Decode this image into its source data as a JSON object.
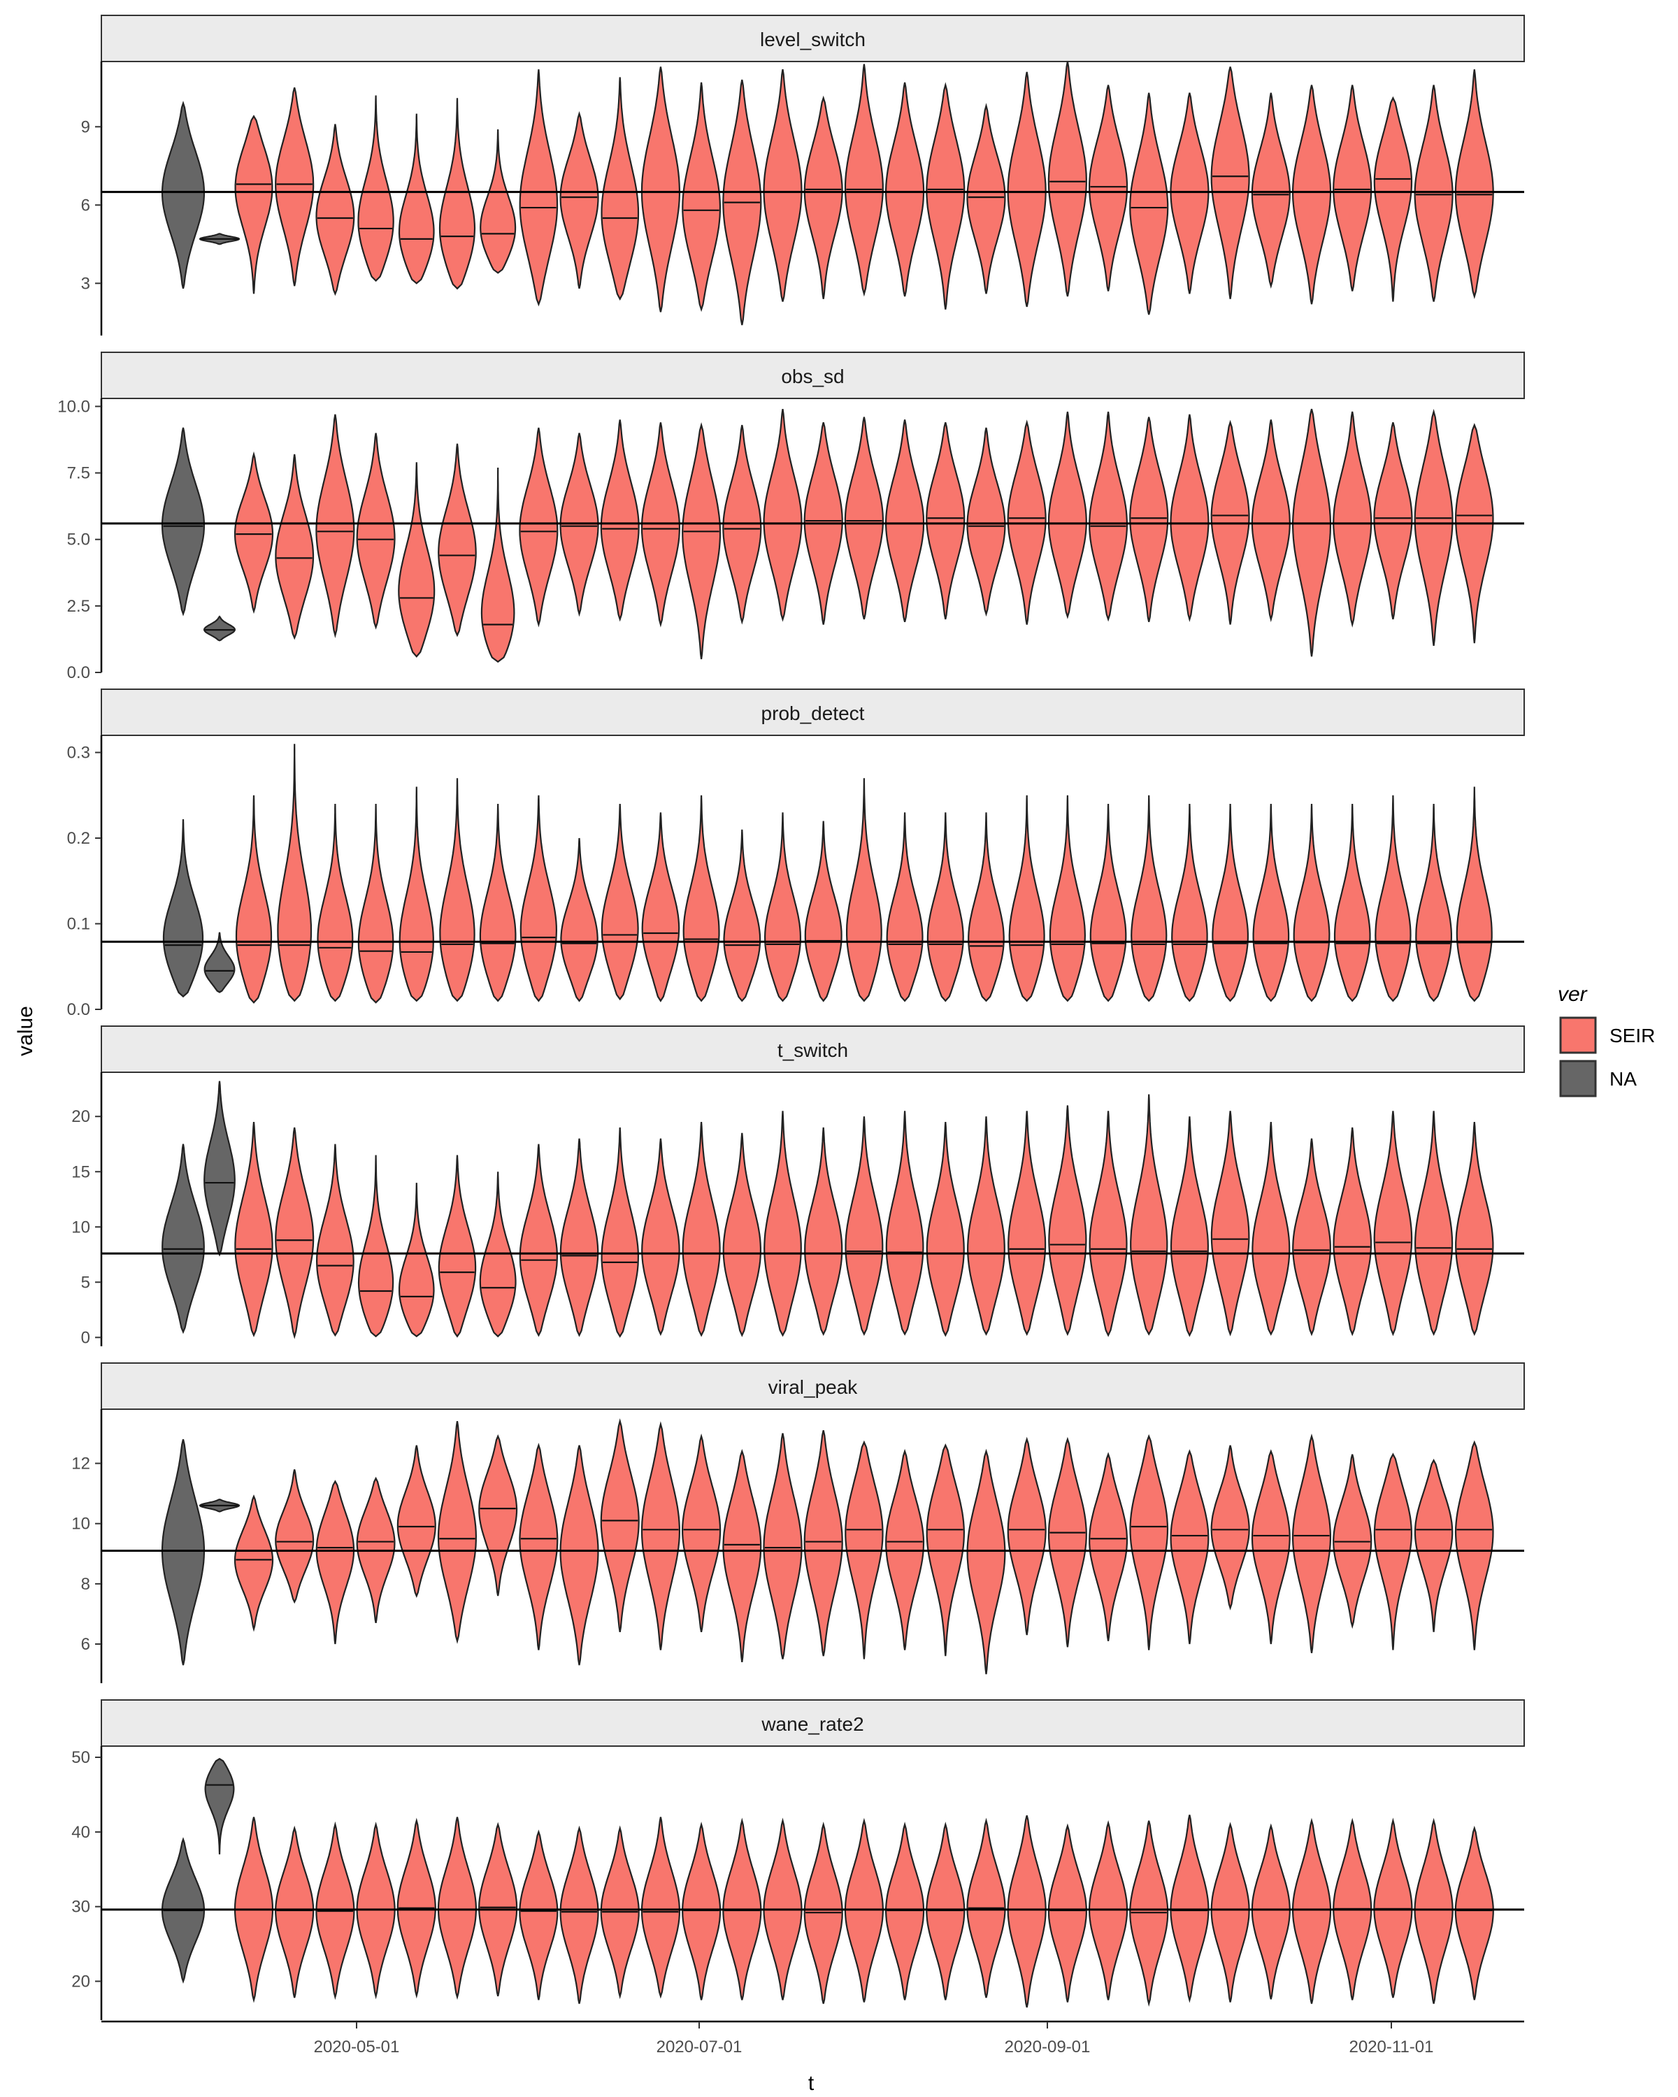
{
  "chart_data": {
    "type": "violin",
    "xlabel": "t",
    "ylabel": "value",
    "x_tick_labels": [
      "2020-05-01",
      "2020-07-01",
      "2020-09-01",
      "2020-11-01"
    ],
    "legend": {
      "title": "ver",
      "placement": "right",
      "entries": [
        {
          "label": "SEIR",
          "color": "#f8766d"
        },
        {
          "label": "NA",
          "color": "#666666"
        }
      ]
    },
    "facets": [
      {
        "name": "level_switch",
        "ylim": [
          1.0,
          11.5
        ],
        "yticks": [
          3,
          6,
          9
        ],
        "hline": 6.5,
        "prior": {
          "median": 6.5,
          "min": 2.8,
          "max": 9.9
        },
        "extra": {
          "median": 4.7,
          "min": 4.5,
          "max": 4.9
        },
        "medians": [
          6.8,
          6.8,
          5.5,
          5.1,
          4.7,
          4.8,
          4.9,
          5.9,
          6.3,
          5.5,
          6.5,
          5.8,
          6.1,
          6.5,
          6.6,
          6.6,
          6.5,
          6.6,
          6.3,
          6.5,
          6.9,
          6.7,
          5.9,
          6.5,
          7.1,
          6.4,
          6.5,
          6.6,
          7.0,
          6.4,
          6.4
        ],
        "mins": [
          2.6,
          2.9,
          2.6,
          3.1,
          3.0,
          2.8,
          3.4,
          2.2,
          2.8,
          2.4,
          1.9,
          2.0,
          1.4,
          2.3,
          2.4,
          2.6,
          2.5,
          2.0,
          2.6,
          2.1,
          2.5,
          2.7,
          1.8,
          2.6,
          2.4,
          2.9,
          2.2,
          2.7,
          2.3,
          2.3,
          2.5
        ],
        "maxs": [
          9.4,
          10.5,
          9.1,
          10.2,
          9.5,
          10.1,
          8.9,
          11.2,
          9.5,
          10.9,
          11.3,
          10.7,
          10.8,
          11.2,
          10.1,
          11.4,
          10.7,
          10.6,
          9.8,
          11.1,
          11.5,
          10.6,
          10.3,
          10.3,
          11.3,
          10.3,
          10.6,
          10.6,
          10.1,
          10.6,
          11.2
        ]
      },
      {
        "name": "obs_sd",
        "ylim": [
          0,
          10.3
        ],
        "yticks": [
          0.0,
          2.5,
          5.0,
          7.5,
          10.0
        ],
        "ytick_labels": [
          "0.0",
          "2.5",
          "5.0",
          "7.5",
          "10.0"
        ],
        "hline": 5.6,
        "prior": {
          "median": 5.5,
          "min": 2.2,
          "max": 9.2
        },
        "extra": {
          "median": 1.6,
          "min": 1.2,
          "max": 2.1
        },
        "medians": [
          5.2,
          4.3,
          5.3,
          5.0,
          2.8,
          4.4,
          1.8,
          5.3,
          5.5,
          5.4,
          5.4,
          5.3,
          5.4,
          5.6,
          5.7,
          5.7,
          5.6,
          5.8,
          5.5,
          5.8,
          5.6,
          5.5,
          5.8,
          5.6,
          5.9,
          5.6,
          5.6,
          5.6,
          5.8,
          5.8,
          5.9
        ],
        "mins": [
          2.3,
          1.3,
          1.4,
          1.7,
          0.6,
          1.4,
          0.4,
          1.8,
          2.2,
          2.0,
          1.8,
          0.5,
          1.9,
          2.0,
          1.8,
          2.0,
          1.9,
          2.0,
          2.2,
          1.8,
          2.1,
          2.0,
          1.9,
          2.0,
          1.8,
          2.0,
          0.6,
          1.8,
          2.0,
          1.0,
          1.1
        ],
        "maxs": [
          8.2,
          8.2,
          9.7,
          9.0,
          7.9,
          8.6,
          7.7,
          9.2,
          9.0,
          9.5,
          9.4,
          9.3,
          9.3,
          9.9,
          9.4,
          9.6,
          9.5,
          9.4,
          9.2,
          9.4,
          9.8,
          9.8,
          9.6,
          9.7,
          9.4,
          9.5,
          9.9,
          9.8,
          9.4,
          9.8,
          9.3
        ]
      },
      {
        "name": "prob_detect",
        "ylim": [
          0,
          0.32
        ],
        "yticks": [
          0.0,
          0.1,
          0.2,
          0.3
        ],
        "ytick_labels": [
          "0.0",
          "0.1",
          "0.2",
          "0.3"
        ],
        "hline": 0.079,
        "prior": {
          "median": 0.075,
          "min": 0.015,
          "max": 0.222
        },
        "extra": {
          "median": 0.045,
          "min": 0.02,
          "max": 0.09
        },
        "medians": [
          0.075,
          0.075,
          0.072,
          0.068,
          0.067,
          0.076,
          0.077,
          0.084,
          0.077,
          0.087,
          0.089,
          0.082,
          0.075,
          0.076,
          0.08,
          0.079,
          0.076,
          0.076,
          0.074,
          0.075,
          0.076,
          0.077,
          0.076,
          0.076,
          0.077,
          0.077,
          0.078,
          0.077,
          0.077,
          0.077,
          0.078
        ],
        "mins": [
          0.008,
          0.01,
          0.01,
          0.008,
          0.01,
          0.01,
          0.01,
          0.01,
          0.01,
          0.012,
          0.01,
          0.01,
          0.01,
          0.01,
          0.01,
          0.01,
          0.01,
          0.01,
          0.01,
          0.01,
          0.01,
          0.01,
          0.01,
          0.01,
          0.01,
          0.01,
          0.01,
          0.01,
          0.01,
          0.01,
          0.01
        ],
        "maxs": [
          0.25,
          0.31,
          0.24,
          0.24,
          0.26,
          0.27,
          0.24,
          0.25,
          0.2,
          0.24,
          0.23,
          0.25,
          0.21,
          0.23,
          0.22,
          0.27,
          0.23,
          0.23,
          0.23,
          0.25,
          0.25,
          0.24,
          0.25,
          0.24,
          0.24,
          0.24,
          0.24,
          0.24,
          0.25,
          0.24,
          0.26
        ]
      },
      {
        "name": "t_switch",
        "ylim": [
          -0.8,
          24.0
        ],
        "yticks": [
          0,
          5,
          10,
          15,
          20
        ],
        "hline": 7.6,
        "prior": {
          "median": 8.0,
          "min": 0.5,
          "max": 17.5
        },
        "extra": {
          "median": 14.0,
          "min": 7.5,
          "max": 23.2
        },
        "medians": [
          8.0,
          8.8,
          6.5,
          4.2,
          3.7,
          5.9,
          4.5,
          7.0,
          7.4,
          6.8,
          7.6,
          7.6,
          7.6,
          7.6,
          7.6,
          7.8,
          7.7,
          7.6,
          7.6,
          8.0,
          8.4,
          8.0,
          7.8,
          7.8,
          8.9,
          7.6,
          7.9,
          8.2,
          8.6,
          8.1,
          8.0
        ],
        "mins": [
          0.2,
          0.1,
          0.2,
          0.1,
          0.1,
          0.1,
          0.1,
          0.2,
          0.2,
          0.1,
          0.3,
          0.2,
          0.2,
          0.2,
          0.3,
          0.3,
          0.3,
          0.2,
          0.3,
          0.3,
          0.3,
          0.2,
          0.3,
          0.2,
          0.3,
          0.3,
          0.3,
          0.3,
          0.3,
          0.3,
          0.3
        ],
        "maxs": [
          19.5,
          19.0,
          17.5,
          16.5,
          14.0,
          16.5,
          15.0,
          17.5,
          18.0,
          19.0,
          18.0,
          19.5,
          18.5,
          20.5,
          19.0,
          20.0,
          20.5,
          19.5,
          20.0,
          20.5,
          21.0,
          20.5,
          22.0,
          20.0,
          20.5,
          19.5,
          18.0,
          19.0,
          20.5,
          20.5,
          19.5
        ]
      },
      {
        "name": "viral_peak",
        "ylim": [
          4.7,
          13.8
        ],
        "yticks": [
          6,
          8,
          10,
          12
        ],
        "hline": 9.1,
        "prior": {
          "median": 9.1,
          "min": 5.3,
          "max": 12.8
        },
        "extra": {
          "median": 10.6,
          "min": 10.4,
          "max": 10.8
        },
        "medians": [
          8.8,
          9.4,
          9.2,
          9.4,
          9.9,
          9.5,
          10.5,
          9.5,
          9.1,
          10.1,
          9.8,
          9.8,
          9.3,
          9.2,
          9.4,
          9.8,
          9.4,
          9.8,
          9.1,
          9.8,
          9.7,
          9.5,
          9.9,
          9.6,
          9.8,
          9.6,
          9.6,
          9.4,
          9.8,
          9.8,
          9.8
        ],
        "mins": [
          6.5,
          7.4,
          6.0,
          6.7,
          7.6,
          6.1,
          7.6,
          5.8,
          5.3,
          6.4,
          5.8,
          6.4,
          5.4,
          5.5,
          5.6,
          5.5,
          5.8,
          5.6,
          5.0,
          6.3,
          5.9,
          6.1,
          5.8,
          6.0,
          7.2,
          6.0,
          5.7,
          6.6,
          5.8,
          6.4,
          5.8
        ],
        "maxs": [
          10.9,
          11.8,
          11.4,
          11.5,
          12.6,
          13.4,
          12.9,
          12.6,
          12.6,
          13.4,
          13.3,
          12.9,
          12.4,
          13.0,
          13.1,
          12.7,
          12.4,
          12.6,
          12.4,
          12.8,
          12.8,
          12.3,
          12.9,
          12.4,
          12.6,
          12.4,
          12.9,
          12.3,
          12.3,
          12.1,
          12.7
        ]
      },
      {
        "name": "wane_rate2",
        "ylim": [
          14.8,
          51.5
        ],
        "yticks": [
          20,
          30,
          40,
          50
        ],
        "hline": 29.6,
        "prior": {
          "median": 29.5,
          "min": 20.0,
          "max": 39.0
        },
        "extra": {
          "median": 46.3,
          "min": 37.0,
          "max": 49.8
        },
        "medians": [
          29.6,
          29.5,
          29.4,
          29.6,
          29.8,
          29.6,
          29.9,
          29.4,
          29.3,
          29.3,
          29.3,
          29.5,
          29.5,
          29.6,
          29.2,
          29.6,
          29.5,
          29.5,
          29.8,
          29.6,
          29.5,
          29.6,
          29.2,
          29.5,
          29.6,
          29.6,
          29.6,
          29.7,
          29.7,
          29.6,
          29.5
        ],
        "mins": [
          17.5,
          17.8,
          17.9,
          18.0,
          18.1,
          17.9,
          18.0,
          17.5,
          17.0,
          18.0,
          18.0,
          17.5,
          17.5,
          17.5,
          17.0,
          17.2,
          17.5,
          17.5,
          17.8,
          16.5,
          17.2,
          17.5,
          17.0,
          17.5,
          17.2,
          17.6,
          17.0,
          17.5,
          17.8,
          17.0,
          17.5
        ],
        "maxs": [
          42.0,
          40.5,
          41.0,
          41.0,
          41.5,
          42.0,
          41.0,
          40.0,
          40.5,
          40.5,
          42.0,
          41.0,
          41.5,
          41.5,
          41.0,
          41.5,
          41.0,
          41.0,
          41.5,
          42.2,
          40.8,
          41.2,
          41.5,
          42.3,
          41.0,
          40.8,
          41.5,
          41.5,
          41.5,
          41.5,
          40.5
        ]
      }
    ]
  }
}
